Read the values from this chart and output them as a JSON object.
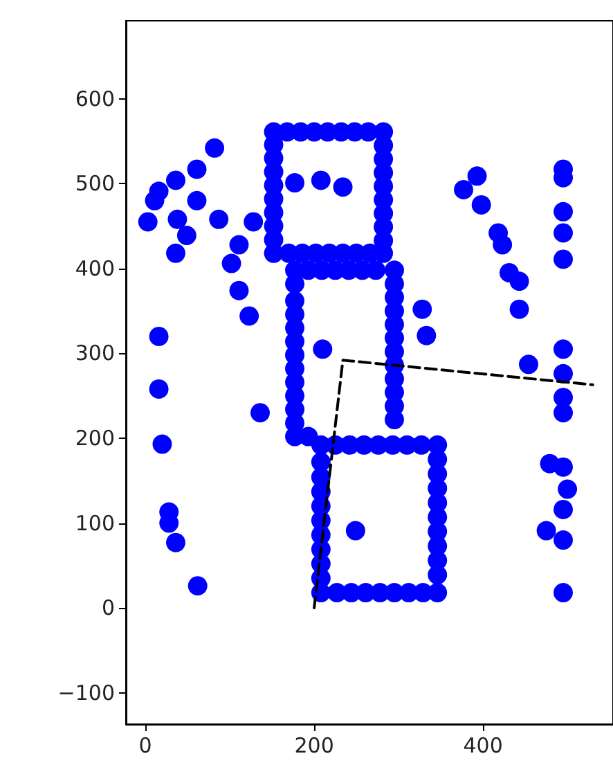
{
  "chart_data": {
    "type": "scatter",
    "xlim": [
      -23,
      554
    ],
    "xticks": [
      0,
      200,
      400
    ],
    "ylim": [
      -137,
      692
    ],
    "yticks": [
      -100,
      0,
      100,
      200,
      300,
      400,
      500,
      600
    ],
    "grid": false,
    "marker": "circle",
    "series": [
      {
        "color": "#0000ff",
        "x": [
          3,
          11,
          16,
          36,
          61,
          82,
          38,
          61,
          49,
          36,
          87,
          111,
          102,
          111,
          123,
          16,
          16,
          20,
          28,
          28,
          36,
          62,
          136,
          128,
          177,
          208,
          234,
          210,
          249,
          328,
          333,
          377,
          393,
          398,
          418,
          423,
          431,
          443,
          443,
          454,
          495,
          495,
          495,
          495,
          495,
          495,
          495,
          495,
          495,
          495,
          495,
          495,
          479,
          500,
          475,
          495
        ],
        "values": [
          455,
          480,
          491,
          504,
          517,
          542,
          458,
          480,
          439,
          418,
          458,
          428,
          406,
          374,
          344,
          320,
          258,
          193,
          113,
          100,
          77,
          26,
          230,
          455,
          501,
          504,
          496,
          305,
          91,
          352,
          321,
          493,
          509,
          475,
          442,
          428,
          395,
          385,
          352,
          287,
          517,
          507,
          467,
          442,
          411,
          305,
          276,
          248,
          230,
          166,
          116,
          18,
          170,
          140,
          91,
          80
        ]
      },
      {
        "color": "#0000ff",
        "x": [
          152,
          168,
          184,
          200,
          216,
          232,
          248,
          264,
          282,
          282,
          282,
          282,
          282,
          282,
          282,
          282,
          282,
          282,
          266,
          250,
          234,
          218,
          202,
          186,
          170,
          152,
          152,
          152,
          152,
          152,
          152,
          152,
          152,
          152
        ],
        "values": [
          561,
          561,
          561,
          561,
          561,
          561,
          561,
          561,
          561,
          545,
          529,
          513,
          497,
          481,
          465,
          449,
          433,
          418,
          418,
          418,
          418,
          418,
          418,
          418,
          418,
          418,
          434,
          450,
          466,
          482,
          498,
          514,
          530,
          546
        ]
      },
      {
        "color": "#0000ff",
        "x": [
          177,
          193,
          209,
          225,
          241,
          257,
          273,
          295,
          295,
          295,
          295,
          295,
          295,
          295,
          295,
          295,
          295,
          295,
          295,
          193,
          177,
          177,
          177,
          177,
          177,
          177,
          177,
          177,
          177,
          177,
          177,
          177
        ],
        "values": [
          398,
          398,
          398,
          398,
          398,
          398,
          398,
          398,
          382,
          366,
          350,
          334,
          318,
          302,
          286,
          270,
          254,
          238,
          222,
          202,
          202,
          218,
          234,
          250,
          266,
          282,
          298,
          314,
          330,
          346,
          362,
          382
        ]
      },
      {
        "color": "#0000ff",
        "x": [
          208,
          225,
          242,
          259,
          276,
          293,
          310,
          327,
          346,
          346,
          346,
          346,
          346,
          346,
          346,
          346,
          346,
          346,
          346,
          329,
          312,
          295,
          278,
          261,
          244,
          227,
          208,
          208,
          208,
          208,
          208,
          208,
          208,
          208,
          208,
          208
        ],
        "values": [
          192,
          192,
          192,
          192,
          192,
          192,
          192,
          192,
          192,
          175,
          158,
          141,
          124,
          107,
          90,
          73,
          56,
          39,
          18,
          18,
          18,
          18,
          18,
          18,
          18,
          18,
          18,
          35,
          52,
          69,
          86,
          103,
          120,
          137,
          154,
          172
        ]
      },
      {
        "type": "line",
        "color": "#000000",
        "line_style": "dashed",
        "marker": "none",
        "x": [
          200,
          234,
          530
        ],
        "values": [
          0,
          292,
          263
        ]
      }
    ]
  }
}
